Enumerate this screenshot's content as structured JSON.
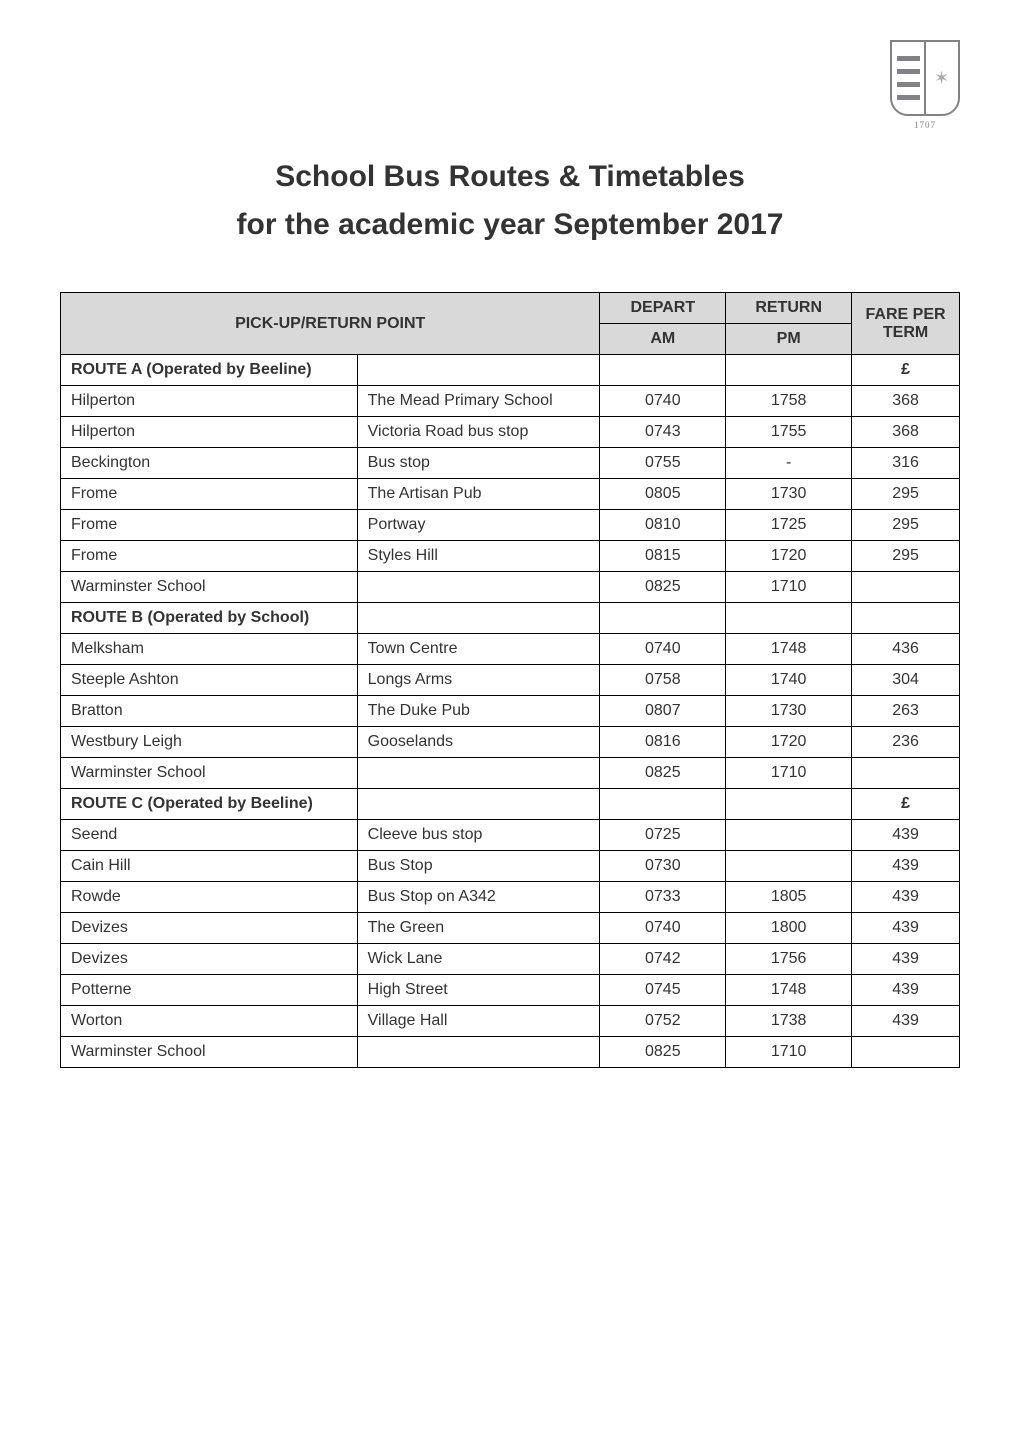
{
  "logo": {
    "year": "1707",
    "outline_color": "#808285",
    "bar_color": "#808285",
    "crest_tint": "#a7a9ac"
  },
  "heading": {
    "title": "School Bus Routes & Timetables",
    "subtitle": "for the academic year September 2017"
  },
  "table": {
    "header": {
      "pickup": "PICK-UP/RETURN POINT",
      "depart": "DEPART",
      "return": "RETURN",
      "fare": "FARE PER TERM",
      "am": "AM",
      "pm": "PM"
    },
    "colors": {
      "header_bg": "#d9d9d9",
      "border": "#000000",
      "text": "#333333",
      "background": "#ffffff"
    },
    "column_widths_pct": [
      33,
      27,
      14,
      14,
      12
    ],
    "font_size_pt": 12,
    "sections": [
      {
        "name": "ROUTE A (Operated by Beeline)",
        "currency": "£",
        "rows": [
          {
            "loc": "Hilperton",
            "point": "The Mead Primary School",
            "am": "0740",
            "pm": "1758",
            "fare": "368"
          },
          {
            "loc": "Hilperton",
            "point": "Victoria Road bus stop",
            "am": "0743",
            "pm": "1755",
            "fare": "368"
          },
          {
            "loc": "Beckington",
            "point": "Bus stop",
            "am": "0755",
            "pm": "-",
            "fare": "316"
          },
          {
            "loc": "Frome",
            "point": "The Artisan Pub",
            "am": "0805",
            "pm": "1730",
            "fare": "295"
          },
          {
            "loc": "Frome",
            "point": "Portway",
            "am": "0810",
            "pm": "1725",
            "fare": "295"
          },
          {
            "loc": "Frome",
            "point": "Styles Hill",
            "am": "0815",
            "pm": "1720",
            "fare": "295"
          },
          {
            "loc": "Warminster School",
            "point": "",
            "am": "0825",
            "pm": "1710",
            "fare": ""
          }
        ]
      },
      {
        "name": "ROUTE B (Operated by School)",
        "currency": "",
        "rows": [
          {
            "loc": "Melksham",
            "point": "Town Centre",
            "am": "0740",
            "pm": "1748",
            "fare": "436"
          },
          {
            "loc": "Steeple Ashton",
            "point": "Longs Arms",
            "am": "0758",
            "pm": "1740",
            "fare": "304"
          },
          {
            "loc": "Bratton",
            "point": "The Duke Pub",
            "am": "0807",
            "pm": "1730",
            "fare": "263"
          },
          {
            "loc": "Westbury Leigh",
            "point": "Gooselands",
            "am": "0816",
            "pm": "1720",
            "fare": "236"
          },
          {
            "loc": "Warminster School",
            "point": "",
            "am": "0825",
            "pm": "1710",
            "fare": ""
          }
        ]
      },
      {
        "name": "ROUTE C (Operated by Beeline)",
        "currency": "£",
        "rows": [
          {
            "loc": "Seend",
            "point": "Cleeve bus stop",
            "am": "0725",
            "pm": "",
            "fare": "439"
          },
          {
            "loc": "Cain Hill",
            "point": "Bus Stop",
            "am": "0730",
            "pm": "",
            "fare": "439"
          },
          {
            "loc": "Rowde",
            "point": "Bus Stop on A342",
            "am": "0733",
            "pm": "1805",
            "fare": "439"
          },
          {
            "loc": "Devizes",
            "point": "The Green",
            "am": "0740",
            "pm": "1800",
            "fare": "439"
          },
          {
            "loc": "Devizes",
            "point": "Wick Lane",
            "am": "0742",
            "pm": "1756",
            "fare": "439"
          },
          {
            "loc": "Potterne",
            "point": "High Street",
            "am": "0745",
            "pm": "1748",
            "fare": "439"
          },
          {
            "loc": "Worton",
            "point": "Village Hall",
            "am": "0752",
            "pm": "1738",
            "fare": "439"
          },
          {
            "loc": "Warminster School",
            "point": "",
            "am": "0825",
            "pm": "1710",
            "fare": ""
          }
        ]
      }
    ]
  }
}
